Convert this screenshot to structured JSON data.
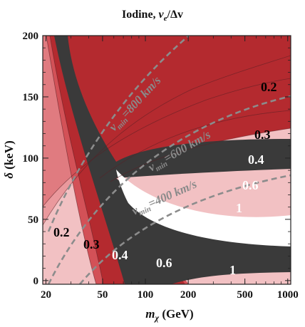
{
  "chart_data": {
    "type": "contour",
    "title_main": "Iodine, ",
    "title_sym": "v",
    "title_sub": "e",
    "title_rest": "/Δv",
    "xlabel_sym": "m",
    "xlabel_sub": "χ",
    "xlabel_rest": " (GeV)",
    "ylabel_sym": "δ",
    "ylabel_rest": " (keV)",
    "x_scale": "log",
    "xlim": [
      19,
      1050
    ],
    "ylim": [
      -3,
      200
    ],
    "x_ticks": [
      20,
      50,
      100,
      200,
      500,
      1000
    ],
    "x_tick_labels": [
      "20",
      "50",
      "100",
      "200",
      "500",
      "1000"
    ],
    "y_ticks": [
      0,
      50,
      100,
      150,
      200
    ],
    "y_tick_labels": [
      "0",
      "50",
      "100",
      "150",
      "200"
    ],
    "contour_levels": [
      "0.2",
      "0.3",
      "0.4",
      "0.6",
      "1"
    ],
    "contour_label_colors": [
      "#000000",
      "#000000",
      "#ffffff",
      "#ffffff",
      "#ffffff"
    ],
    "region_colors": {
      "below_0.2": "#f2c1c3",
      "0.2_to_0.3": "#ea999d",
      "0.3_to_0.4": "#e07b80",
      "0.4_to_0.6": "#d35157",
      "0.6_to_1": "#b42a2f",
      "above_1": "#3a3a3a",
      "peak": "#ffffff"
    },
    "vmin_curves": [
      {
        "label_sym": "v",
        "label_sub": "min",
        "label_rest": "=400 km/s"
      },
      {
        "label_sym": "v",
        "label_sub": "min",
        "label_rest": "=600 km/s"
      },
      {
        "label_sym": "v",
        "label_sub": "min",
        "label_rest": "=800 km/s"
      }
    ]
  }
}
